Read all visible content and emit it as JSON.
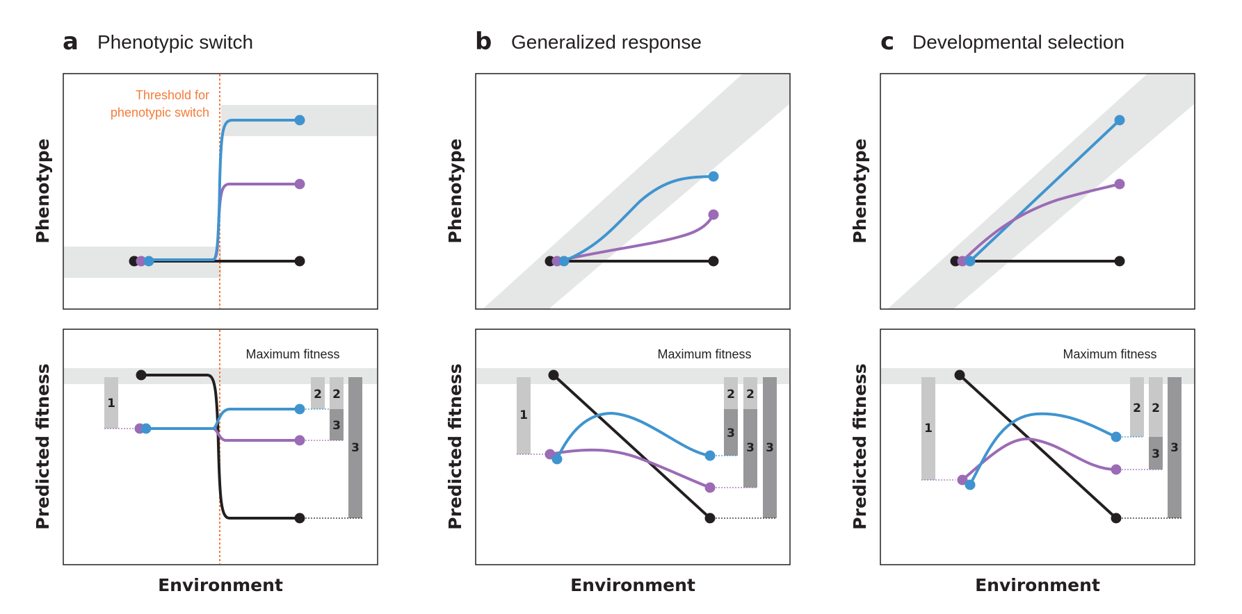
{
  "panels": [
    {
      "letter": "a",
      "title": "Phenotypic switch",
      "threshold_label_line1": "Threshold for",
      "threshold_label_line2": "phenotypic switch",
      "max_fitness_label": "Maximum fitness",
      "bar_labels": {
        "b1": "1",
        "b2a": "2",
        "b2b": "2",
        "b3a": "3",
        "b3b": "3"
      }
    },
    {
      "letter": "b",
      "title": "Generalized response",
      "max_fitness_label": "Maximum fitness",
      "bar_labels": {
        "b1": "1",
        "b2a": "2",
        "b2b": "2",
        "b3a": "3",
        "b3b": "3",
        "b3c": "3"
      }
    },
    {
      "letter": "c",
      "title": "Developmental selection",
      "max_fitness_label": "Maximum fitness",
      "bar_labels": {
        "b1": "1",
        "b2a": "2",
        "b2b": "2",
        "b3a": "3",
        "b3b": "3"
      }
    }
  ],
  "axes": {
    "phenotype": "Phenotype",
    "fitness": "Predicted fitness",
    "environment": "Environment"
  },
  "colors": {
    "blue": "#3f94cf",
    "purple": "#9b6bb5",
    "black": "#231f20",
    "threshold": "#f47b3a",
    "band": "#e5e6e6",
    "bar_light": "#c8c8c8",
    "bar_dark": "#979799",
    "frame": "#231f20"
  }
}
